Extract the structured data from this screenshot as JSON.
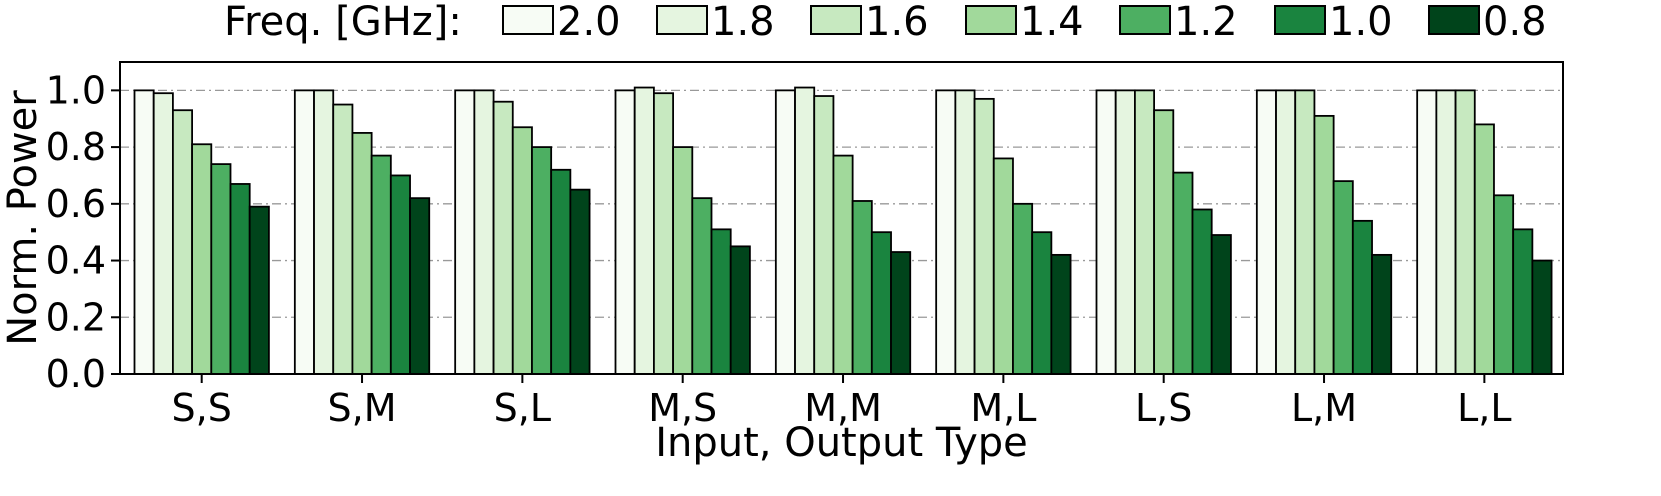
{
  "chart_data": {
    "type": "bar",
    "title": "",
    "xlabel": "Input, Output Type",
    "ylabel": "Norm. Power",
    "ylim": [
      0,
      1.1
    ],
    "yticks": [
      "0.0",
      "0.2",
      "0.4",
      "0.6",
      "0.8",
      "1.0"
    ],
    "grid": true,
    "legend": {
      "title": "Freq. [GHz]:",
      "placement": "top",
      "orientation": "horizontal"
    },
    "categories": [
      "S,S",
      "S,M",
      "S,L",
      "M,S",
      "M,M",
      "M,L",
      "L,S",
      "L,M",
      "L,L"
    ],
    "series": [
      {
        "name": "2.0",
        "color": "#f7fcf5",
        "values": [
          1.0,
          1.0,
          1.0,
          1.0,
          1.0,
          1.0,
          1.0,
          1.0,
          1.0
        ]
      },
      {
        "name": "1.8",
        "color": "#e5f5e0",
        "values": [
          0.99,
          1.0,
          1.0,
          1.01,
          1.01,
          1.0,
          1.0,
          1.0,
          1.0
        ]
      },
      {
        "name": "1.6",
        "color": "#c7e9c0",
        "values": [
          0.93,
          0.95,
          0.96,
          0.99,
          0.98,
          0.97,
          1.0,
          1.0,
          1.0
        ]
      },
      {
        "name": "1.4",
        "color": "#a1d99b",
        "values": [
          0.81,
          0.85,
          0.87,
          0.8,
          0.77,
          0.76,
          0.93,
          0.91,
          0.88
        ]
      },
      {
        "name": "1.2",
        "color": "#4daf62",
        "values": [
          0.74,
          0.77,
          0.8,
          0.62,
          0.61,
          0.6,
          0.71,
          0.68,
          0.63
        ]
      },
      {
        "name": "1.0",
        "color": "#1a843f",
        "values": [
          0.67,
          0.7,
          0.72,
          0.51,
          0.5,
          0.5,
          0.58,
          0.54,
          0.51
        ]
      },
      {
        "name": "0.8",
        "color": "#00441b",
        "values": [
          0.59,
          0.62,
          0.65,
          0.45,
          0.43,
          0.42,
          0.49,
          0.42,
          0.4
        ]
      }
    ]
  }
}
